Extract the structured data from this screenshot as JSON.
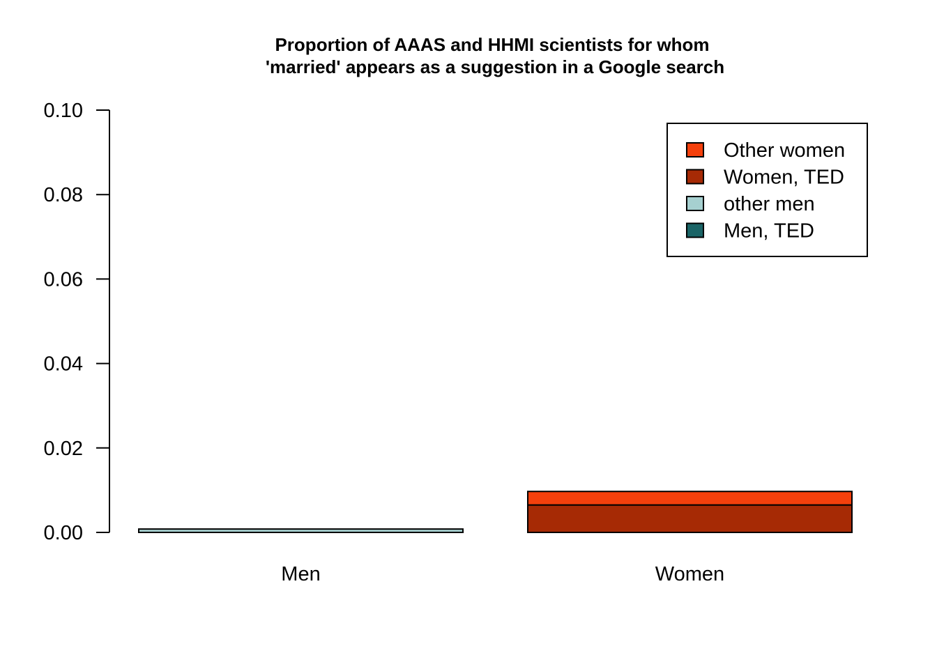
{
  "chart_data": {
    "type": "bar",
    "stacked": true,
    "title": "Proportion of AAAS and HHMI scientists for whom",
    "subtitle": "'married' appears as a suggestion in a Google search",
    "xlabel": "",
    "ylabel": "",
    "ylim": [
      0,
      0.1
    ],
    "yticks": [
      0,
      0.02,
      0.04,
      0.06,
      0.08,
      0.1
    ],
    "ytick_labels": [
      "0.00",
      "0.02",
      "0.04",
      "0.06",
      "0.08",
      "0.10"
    ],
    "grid": false,
    "legend_position": "top-right",
    "categories": [
      "Men",
      "Women"
    ],
    "series": [
      {
        "name": "Men, TED",
        "color": "#1a6466",
        "values": [
          0,
          0
        ]
      },
      {
        "name": "other men",
        "color": "#a6d0d0",
        "values": [
          0.0008,
          0
        ]
      },
      {
        "name": "Women, TED",
        "color": "#a62a05",
        "values": [
          0,
          0.0065
        ]
      },
      {
        "name": "Other women",
        "color": "#f5400c",
        "values": [
          0,
          0.0032
        ]
      }
    ],
    "legend_order": [
      "Other women",
      "Women, TED",
      "other men",
      "Men, TED"
    ]
  }
}
